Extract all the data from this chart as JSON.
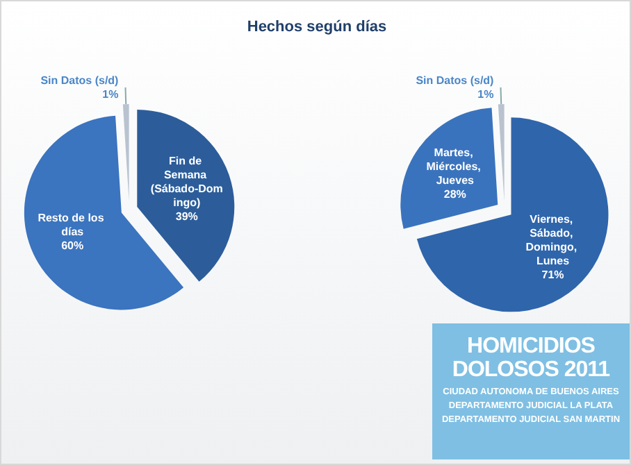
{
  "chart_data": [
    {
      "type": "pie",
      "title": "Hechos según días",
      "categories": [
        "Fin de Semana (Sábado-Domingo)",
        "Resto de los días",
        "Sin Datos (s/d)"
      ],
      "values": [
        39,
        60,
        1
      ],
      "value_labels": [
        "39%",
        "60%",
        "1%"
      ],
      "colors": [
        "#2c5d9a",
        "#3b74bf",
        "#b9c3cf"
      ],
      "legend": false
    },
    {
      "type": "pie",
      "categories": [
        "Viernes, Sábado, Domingo, Lunes",
        "Martes, Miércoles, Jueves",
        "Sin Datos (s/d)"
      ],
      "values": [
        71,
        28,
        1
      ],
      "value_labels": [
        "71%",
        "28%",
        "1%"
      ],
      "colors": [
        "#2f65ab",
        "#3a73bd",
        "#b9c3cf"
      ],
      "legend": false
    },
    {
      "type": "other",
      "title": "HOMICIDIOS DOLOSOS 2011",
      "annotations": [
        "CIUDAD AUTONOMA DE BUENOS AIRES",
        "DEPARTAMENTO JUDICIAL LA PLATA",
        "DEPARTAMENTO JUDICIAL SAN MARTIN"
      ]
    }
  ]
}
